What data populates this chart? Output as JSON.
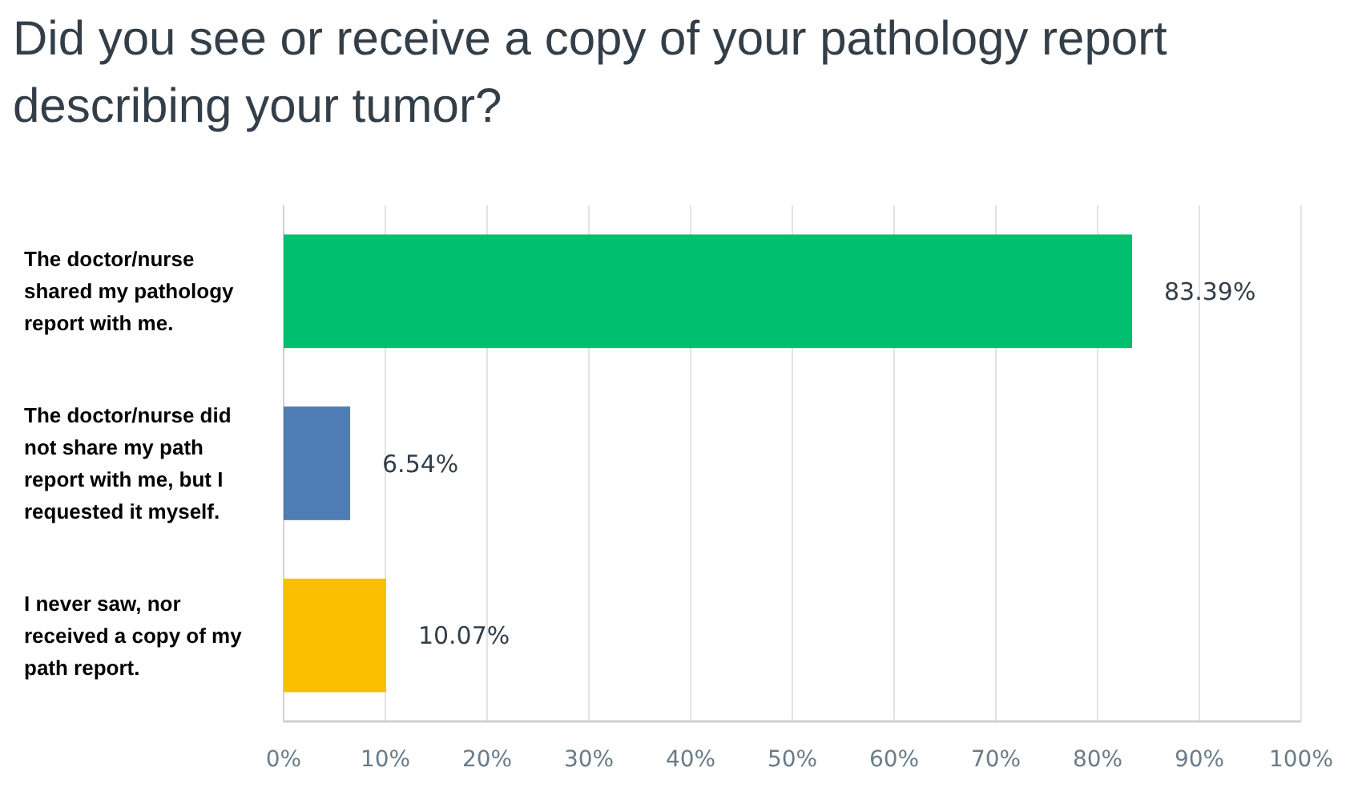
{
  "chart_data": {
    "type": "bar",
    "orientation": "horizontal",
    "title": "Did you see or receive a copy of your pathology report describing your tumor?",
    "categories": [
      "The doctor/nurse shared my pathology report with me.",
      "The doctor/nurse did not share my path report with me, but I requested it myself.",
      "I never saw, nor received a copy of my path report."
    ],
    "values": [
      83.39,
      6.54,
      10.07
    ],
    "colors": [
      "#00bf6f",
      "#507cb6",
      "#f9be00"
    ],
    "value_labels": [
      "83.39%",
      "6.54%",
      "10.07%"
    ],
    "xlim": [
      0,
      100
    ],
    "xticks": [
      {
        "value": 0,
        "label": "0%"
      },
      {
        "value": 10,
        "label": "10%"
      },
      {
        "value": 20,
        "label": "20%"
      },
      {
        "value": 30,
        "label": "30%"
      },
      {
        "value": 40,
        "label": "40%"
      },
      {
        "value": 50,
        "label": "50%"
      },
      {
        "value": 60,
        "label": "60%"
      },
      {
        "value": 70,
        "label": "70%"
      },
      {
        "value": 80,
        "label": "80%"
      },
      {
        "value": 90,
        "label": "90%"
      },
      {
        "value": 100,
        "label": "100%"
      }
    ],
    "grid": "x"
  }
}
